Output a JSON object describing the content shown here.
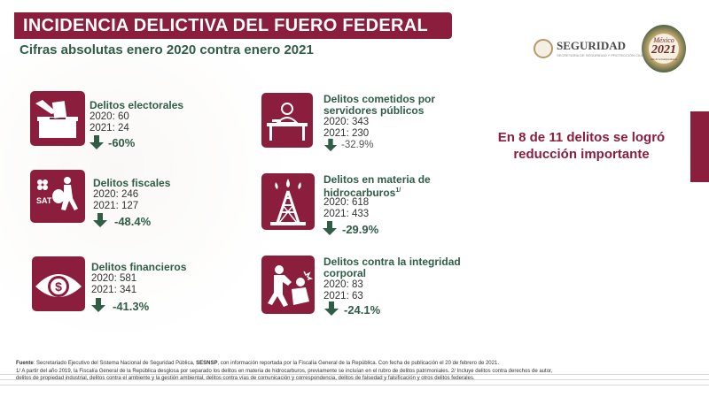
{
  "header": {
    "title": "INCIDENCIA DELICTIVA DEL FUERO FEDERAL",
    "subtitle": "Cifras absolutas enero 2020 contra enero 2021"
  },
  "logos": {
    "seguridad": "SEGURIDAD",
    "seguridad_sub": "SECRETARÍA DE SEGURIDAD Y PROTECCIÓN CIUDADANA",
    "mexico_line1": "México",
    "mexico_line2": "2021",
    "mexico_line3": "Año de la Independencia"
  },
  "summary": {
    "line1": "En 8  de 11 delitos se logró",
    "line2": "reducción importante"
  },
  "crimes": [
    {
      "name_line1": "Delitos electorales",
      "name_line2": "",
      "sup": "",
      "v2020": "2020: 60",
      "v2021": "2021: 24",
      "change": "-60%",
      "icon": "ballot-box-icon"
    },
    {
      "name_line1": "Delitos fiscales",
      "name_line2": "",
      "sup": "",
      "v2020": "2020: 246",
      "v2021": "2021: 127",
      "change": "-48.4%",
      "icon": "sat-tax-icon",
      "icon_label": "SAT"
    },
    {
      "name_line1": "Delitos financieros",
      "name_line2": "",
      "sup": "",
      "v2020": "2020: 581",
      "v2021": "2021: 341",
      "change": "-41.3%",
      "icon": "dollar-eye-icon"
    },
    {
      "name_line1": "Delitos cometidos por",
      "name_line2": "servidores públicos",
      "sup": "",
      "v2020": "2020: 343",
      "v2021": "2021: 230",
      "change": "-32.9%",
      "icon": "public-servant-desk-icon"
    },
    {
      "name_line1": "Delitos en materia de",
      "name_line2": "hidrocarburos",
      "sup": "1/",
      "v2020": "2020: 618",
      "v2021": "2021: 433",
      "change": "-29.9%",
      "icon": "oil-rig-icon"
    },
    {
      "name_line1": "Delitos contra la integridad",
      "name_line2": "corporal",
      "sup": "",
      "v2020": "2020: 83",
      "v2021": "2021: 63",
      "change": "-24.1%",
      "icon": "assault-icon"
    }
  ],
  "footnote": {
    "fuente_label": "Fuente",
    "line1_a": ": Secretariado Ejecutivo del Sistema Nacional de Seguridad Pública, ",
    "line1_b": "SESNSP",
    "line1_c": ", con información reportada por la Fiscalía General de la República. Con fecha de publicación el 20 de febrero de 2021.",
    "line2": "1/ A partir del año 2019, la Fiscalía General de la República desglosa por separado los delitos en materia de hidrocarburos, previamente se incluían en el rubro de delitos patrimoniales. 2/ Incluye delitos contra derechos de autor,",
    "line3": "delitos de propiedad industrial, delitos contra el ambiente y la gestión ambiental, delitos contra vías de comunicación y correspondencia, delitos de falsedad y falsificación y otros delitos federales."
  },
  "colors": {
    "accent": "#8a1e3c",
    "green": "#2f5d46"
  }
}
